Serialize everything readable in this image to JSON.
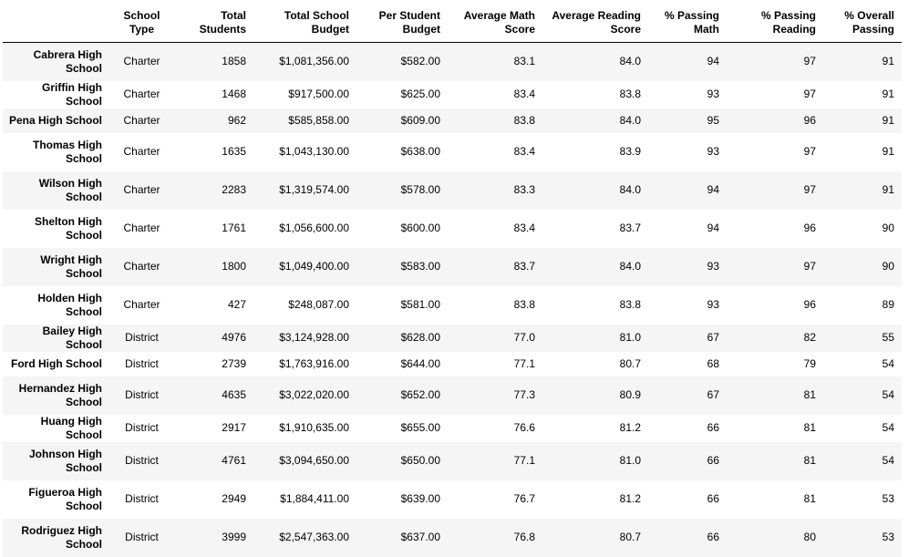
{
  "columns": [
    "",
    "School\nType",
    "Total\nStudents",
    "Total School\nBudget",
    "Per Student\nBudget",
    "Average Math\nScore",
    "Average Reading\nScore",
    "% Passing\nMath",
    "% Passing\nReading",
    "% Overall\nPassing"
  ],
  "rows": [
    {
      "name": "Cabrera High School",
      "type": "Charter",
      "students": "1858",
      "budget": "$1,081,356.00",
      "per_student": "$582.00",
      "math": "83.1",
      "reading": "84.0",
      "pass_math": "94",
      "pass_reading": "97",
      "overall": "91"
    },
    {
      "name": "Griffin High School",
      "type": "Charter",
      "students": "1468",
      "budget": "$917,500.00",
      "per_student": "$625.00",
      "math": "83.4",
      "reading": "83.8",
      "pass_math": "93",
      "pass_reading": "97",
      "overall": "91"
    },
    {
      "name": "Pena High School",
      "type": "Charter",
      "students": "962",
      "budget": "$585,858.00",
      "per_student": "$609.00",
      "math": "83.8",
      "reading": "84.0",
      "pass_math": "95",
      "pass_reading": "96",
      "overall": "91"
    },
    {
      "name": "Thomas High School",
      "type": "Charter",
      "students": "1635",
      "budget": "$1,043,130.00",
      "per_student": "$638.00",
      "math": "83.4",
      "reading": "83.9",
      "pass_math": "93",
      "pass_reading": "97",
      "overall": "91"
    },
    {
      "name": "Wilson High School",
      "type": "Charter",
      "students": "2283",
      "budget": "$1,319,574.00",
      "per_student": "$578.00",
      "math": "83.3",
      "reading": "84.0",
      "pass_math": "94",
      "pass_reading": "97",
      "overall": "91"
    },
    {
      "name": "Shelton High School",
      "type": "Charter",
      "students": "1761",
      "budget": "$1,056,600.00",
      "per_student": "$600.00",
      "math": "83.4",
      "reading": "83.7",
      "pass_math": "94",
      "pass_reading": "96",
      "overall": "90"
    },
    {
      "name": "Wright High School",
      "type": "Charter",
      "students": "1800",
      "budget": "$1,049,400.00",
      "per_student": "$583.00",
      "math": "83.7",
      "reading": "84.0",
      "pass_math": "93",
      "pass_reading": "97",
      "overall": "90"
    },
    {
      "name": "Holden High School",
      "type": "Charter",
      "students": "427",
      "budget": "$248,087.00",
      "per_student": "$581.00",
      "math": "83.8",
      "reading": "83.8",
      "pass_math": "93",
      "pass_reading": "96",
      "overall": "89"
    },
    {
      "name": "Bailey High School",
      "type": "District",
      "students": "4976",
      "budget": "$3,124,928.00",
      "per_student": "$628.00",
      "math": "77.0",
      "reading": "81.0",
      "pass_math": "67",
      "pass_reading": "82",
      "overall": "55"
    },
    {
      "name": "Ford High School",
      "type": "District",
      "students": "2739",
      "budget": "$1,763,916.00",
      "per_student": "$644.00",
      "math": "77.1",
      "reading": "80.7",
      "pass_math": "68",
      "pass_reading": "79",
      "overall": "54"
    },
    {
      "name": "Hernandez High School",
      "type": "District",
      "students": "4635",
      "budget": "$3,022,020.00",
      "per_student": "$652.00",
      "math": "77.3",
      "reading": "80.9",
      "pass_math": "67",
      "pass_reading": "81",
      "overall": "54"
    },
    {
      "name": "Huang High School",
      "type": "District",
      "students": "2917",
      "budget": "$1,910,635.00",
      "per_student": "$655.00",
      "math": "76.6",
      "reading": "81.2",
      "pass_math": "66",
      "pass_reading": "81",
      "overall": "54"
    },
    {
      "name": "Johnson High School",
      "type": "District",
      "students": "4761",
      "budget": "$3,094,650.00",
      "per_student": "$650.00",
      "math": "77.1",
      "reading": "81.0",
      "pass_math": "66",
      "pass_reading": "81",
      "overall": "54"
    },
    {
      "name": "Figueroa High School",
      "type": "District",
      "students": "2949",
      "budget": "$1,884,411.00",
      "per_student": "$639.00",
      "math": "76.7",
      "reading": "81.2",
      "pass_math": "66",
      "pass_reading": "81",
      "overall": "53"
    },
    {
      "name": "Rodriguez High School",
      "type": "District",
      "students": "3999",
      "budget": "$2,547,363.00",
      "per_student": "$637.00",
      "math": "76.8",
      "reading": "80.7",
      "pass_math": "66",
      "pass_reading": "80",
      "overall": "53"
    }
  ]
}
